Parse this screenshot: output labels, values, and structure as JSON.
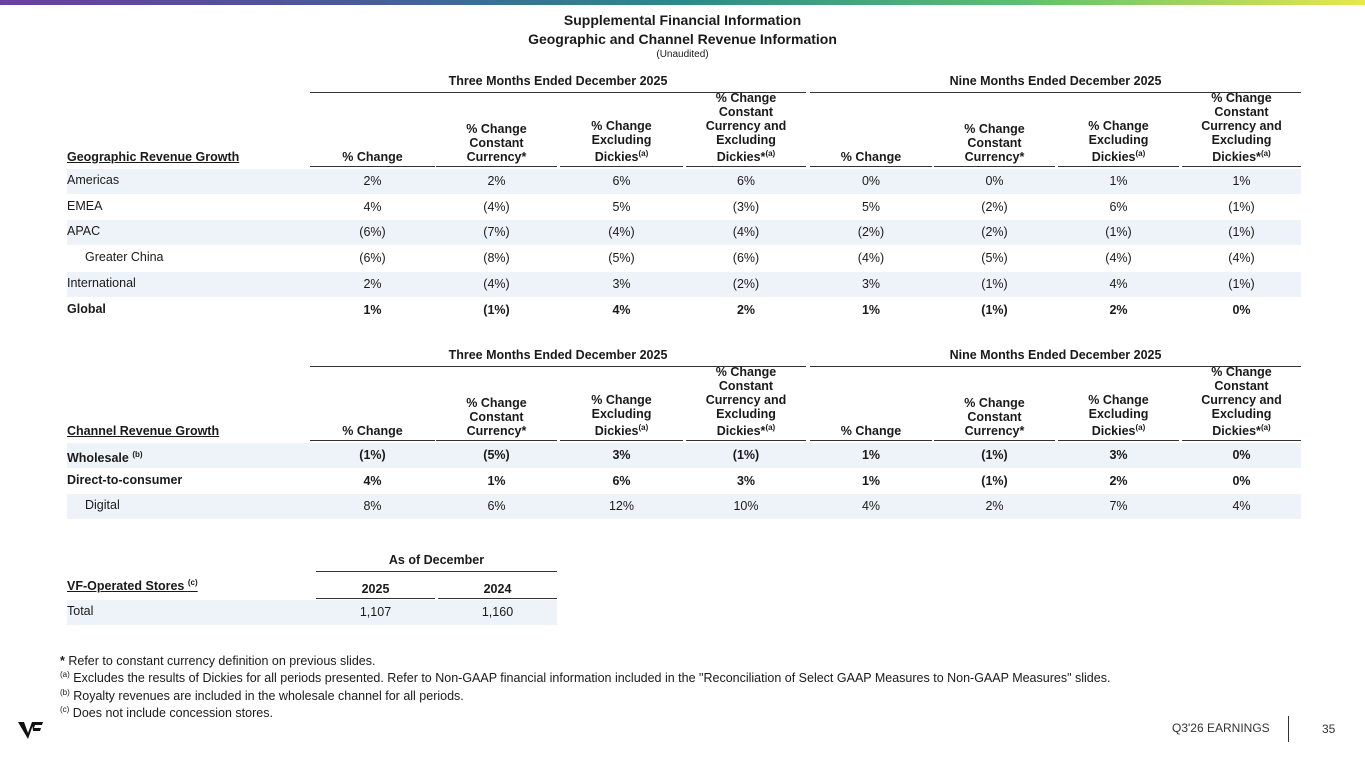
{
  "header": {
    "title": "Supplemental Financial Information",
    "subtitle": "Geographic and Channel Revenue Information",
    "note": "(Unaudited)"
  },
  "colors": {
    "shade": "#eef3f9",
    "gradient": [
      "#6b3fa0",
      "#2a8a8a",
      "#5cc070",
      "#e8e84a"
    ]
  },
  "column_headers": {
    "group_three": "Three Months Ended December 2025",
    "group_nine": "Nine Months Ended December 2025",
    "cols": [
      {
        "lines": [
          "% Change"
        ],
        "sup": ""
      },
      {
        "lines": [
          "% Change",
          "Constant",
          "Currency*"
        ],
        "sup": ""
      },
      {
        "lines": [
          "% Change",
          "Excluding",
          "Dickies"
        ],
        "sup": "(a)"
      },
      {
        "lines": [
          "% Change",
          "Constant",
          "Currency and",
          "Excluding",
          "Dickies*"
        ],
        "sup": "(a)"
      }
    ]
  },
  "geo": {
    "heading": "Geographic Revenue Growth",
    "rows": [
      {
        "label": "Americas",
        "indent": false,
        "bold": false,
        "values": [
          "2%",
          "2%",
          "6%",
          "6%",
          "0%",
          "0%",
          "1%",
          "1%"
        ]
      },
      {
        "label": "EMEA",
        "indent": false,
        "bold": false,
        "values": [
          "4%",
          "(4%)",
          "5%",
          "(3%)",
          "5%",
          "(2%)",
          "6%",
          "(1%)"
        ]
      },
      {
        "label": "APAC",
        "indent": false,
        "bold": false,
        "values": [
          "(6%)",
          "(7%)",
          "(4%)",
          "(4%)",
          "(2%)",
          "(2%)",
          "(1%)",
          "(1%)"
        ]
      },
      {
        "label": "Greater China",
        "indent": true,
        "bold": false,
        "values": [
          "(6%)",
          "(8%)",
          "(5%)",
          "(6%)",
          "(4%)",
          "(5%)",
          "(4%)",
          "(4%)"
        ]
      },
      {
        "label": "International",
        "indent": false,
        "bold": false,
        "values": [
          "2%",
          "(4%)",
          "3%",
          "(2%)",
          "3%",
          "(1%)",
          "4%",
          "(1%)"
        ]
      },
      {
        "label": "Global",
        "indent": false,
        "bold": true,
        "values": [
          "1%",
          "(1%)",
          "4%",
          "2%",
          "1%",
          "(1%)",
          "2%",
          "0%"
        ]
      }
    ]
  },
  "channel": {
    "heading": "Channel Revenue Growth",
    "rows": [
      {
        "label": "Wholesale",
        "sup": "(b)",
        "indent": false,
        "bold": true,
        "values": [
          "(1%)",
          "(5%)",
          "3%",
          "(1%)",
          "1%",
          "(1%)",
          "3%",
          "0%"
        ]
      },
      {
        "label": "Direct-to-consumer",
        "indent": false,
        "bold": true,
        "values": [
          "4%",
          "1%",
          "6%",
          "3%",
          "1%",
          "(1%)",
          "2%",
          "0%"
        ]
      },
      {
        "label": "Digital",
        "indent": true,
        "bold": false,
        "values": [
          "8%",
          "6%",
          "12%",
          "10%",
          "4%",
          "2%",
          "7%",
          "4%"
        ]
      }
    ]
  },
  "stores": {
    "group": "As of December",
    "heading": "VF-Operated Stores",
    "heading_sup": "(c)",
    "years": [
      "2025",
      "2024"
    ],
    "rows": [
      {
        "label": "Total",
        "values": [
          "1,107",
          "1,160"
        ]
      }
    ]
  },
  "footnotes": [
    {
      "mark": "*",
      "text": " Refer to constant currency definition on previous slides."
    },
    {
      "mark": "(a)",
      "text": " Excludes the results of Dickies for all periods presented. Refer to Non-GAAP financial information included in the \"Reconciliation of Select GAAP Measures to Non-GAAP Measures\" slides."
    },
    {
      "mark": "(b)",
      "text": " Royalty revenues are included in the wholesale channel for all periods."
    },
    {
      "mark": "(c)",
      "text": " Does not include concession stores."
    }
  ],
  "footer": {
    "logo": "VF",
    "label": "Q3'26 EARNINGS",
    "page": "35"
  }
}
